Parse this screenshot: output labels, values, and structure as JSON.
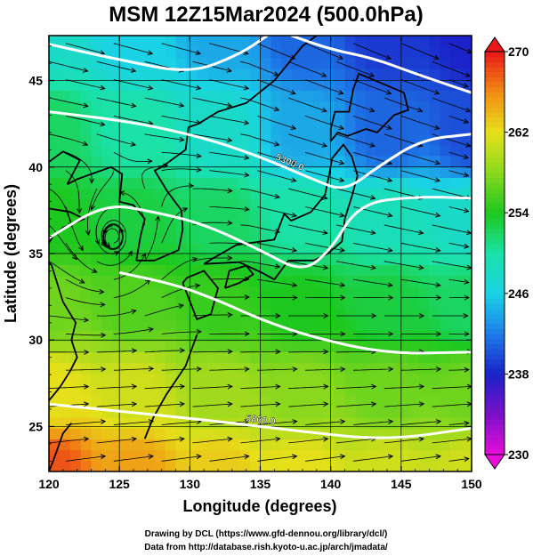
{
  "chart_data": {
    "type": "heatmap",
    "title": "MSM 12Z15Mar2024 (500.0hPa)",
    "xlabel": "Longitude (degrees)",
    "ylabel": "Latitude  (degrees)",
    "xlim": [
      120,
      150
    ],
    "ylim": [
      22.4,
      47.6
    ],
    "xticks": [
      120,
      125,
      130,
      135,
      140,
      145,
      150
    ],
    "yticks": [
      25,
      30,
      35,
      40,
      45
    ],
    "grid": true,
    "colorbar": {
      "min": 230,
      "max": 270,
      "ticks": [
        230,
        238,
        246,
        254,
        262,
        270
      ],
      "placement": "right",
      "stops": [
        {
          "value": 230,
          "color": "#e80fd8"
        },
        {
          "value": 234,
          "color": "#7c10c8"
        },
        {
          "value": 238,
          "color": "#1a22c8"
        },
        {
          "value": 242,
          "color": "#1e7ce8"
        },
        {
          "value": 246,
          "color": "#1ad2e6"
        },
        {
          "value": 250,
          "color": "#1ae2a8"
        },
        {
          "value": 254,
          "color": "#1cc81e"
        },
        {
          "value": 258,
          "color": "#8ad81e"
        },
        {
          "value": 262,
          "color": "#e6e01a"
        },
        {
          "value": 266,
          "color": "#f28c14"
        },
        {
          "value": 270,
          "color": "#e81818"
        }
      ]
    },
    "temperature_field": {
      "note_units": "K",
      "control_points": [
        {
          "lon": 120,
          "lat": 47.6,
          "value": 248
        },
        {
          "lon": 126,
          "lat": 47.6,
          "value": 246
        },
        {
          "lon": 132,
          "lat": 47.6,
          "value": 244
        },
        {
          "lon": 138,
          "lat": 47.6,
          "value": 241
        },
        {
          "lon": 144,
          "lat": 47.6,
          "value": 239
        },
        {
          "lon": 150,
          "lat": 47.6,
          "value": 238
        },
        {
          "lon": 120,
          "lat": 42,
          "value": 252
        },
        {
          "lon": 126,
          "lat": 42,
          "value": 250
        },
        {
          "lon": 132,
          "lat": 42,
          "value": 248
        },
        {
          "lon": 138,
          "lat": 42,
          "value": 244
        },
        {
          "lon": 144,
          "lat": 42,
          "value": 241
        },
        {
          "lon": 150,
          "lat": 42,
          "value": 240
        },
        {
          "lon": 120,
          "lat": 37,
          "value": 254
        },
        {
          "lon": 126,
          "lat": 37,
          "value": 253
        },
        {
          "lon": 132,
          "lat": 37,
          "value": 252
        },
        {
          "lon": 138,
          "lat": 37,
          "value": 250
        },
        {
          "lon": 144,
          "lat": 37,
          "value": 249
        },
        {
          "lon": 150,
          "lat": 37,
          "value": 248
        },
        {
          "lon": 120,
          "lat": 32,
          "value": 257
        },
        {
          "lon": 126,
          "lat": 32,
          "value": 256
        },
        {
          "lon": 132,
          "lat": 32,
          "value": 255
        },
        {
          "lon": 138,
          "lat": 32,
          "value": 254
        },
        {
          "lon": 144,
          "lat": 32,
          "value": 253
        },
        {
          "lon": 150,
          "lat": 32,
          "value": 252
        },
        {
          "lon": 120,
          "lat": 27,
          "value": 262
        },
        {
          "lon": 126,
          "lat": 27,
          "value": 261
        },
        {
          "lon": 132,
          "lat": 27,
          "value": 259
        },
        {
          "lon": 138,
          "lat": 27,
          "value": 258
        },
        {
          "lon": 144,
          "lat": 27,
          "value": 257
        },
        {
          "lon": 150,
          "lat": 27,
          "value": 257
        },
        {
          "lon": 120,
          "lat": 22.4,
          "value": 268
        },
        {
          "lon": 126,
          "lat": 22.4,
          "value": 265
        },
        {
          "lon": 132,
          "lat": 22.4,
          "value": 263
        },
        {
          "lon": 138,
          "lat": 22.4,
          "value": 262
        },
        {
          "lon": 144,
          "lat": 22.4,
          "value": 261
        },
        {
          "lon": 150,
          "lat": 22.4,
          "value": 261
        }
      ]
    },
    "contours": [
      {
        "label": "",
        "points": [
          [
            120,
            47.1
          ],
          [
            125,
            46.2
          ],
          [
            130,
            45.4
          ],
          [
            133.5,
            46.5
          ],
          [
            135.5,
            47.6
          ]
        ]
      },
      {
        "label": "",
        "points": [
          [
            137.2,
            47.6
          ],
          [
            140,
            46.8
          ],
          [
            143,
            46.3
          ],
          [
            146,
            45.4
          ],
          [
            150,
            44.3
          ]
        ]
      },
      {
        "label": "5300.0",
        "points": [
          [
            120,
            43.2
          ],
          [
            126,
            42.6
          ],
          [
            131,
            41.7
          ],
          [
            135,
            40.6
          ],
          [
            139,
            39.2
          ],
          [
            141,
            38.6
          ],
          [
            143.5,
            40.1
          ],
          [
            146.5,
            41.6
          ],
          [
            150,
            41.9
          ]
        ]
      },
      {
        "label": "",
        "points": [
          [
            120,
            35.9
          ],
          [
            124,
            37.9
          ],
          [
            127.5,
            37.4
          ],
          [
            131,
            36.7
          ],
          [
            135,
            35.2
          ],
          [
            138,
            33.9
          ],
          [
            140,
            35.2
          ],
          [
            142,
            37.9
          ],
          [
            146,
            38.3
          ],
          [
            150,
            38.2
          ]
        ]
      },
      {
        "label": "",
        "points": [
          [
            125,
            33.9
          ],
          [
            129,
            33.2
          ],
          [
            132,
            32.3
          ],
          [
            135,
            31.2
          ],
          [
            138.5,
            30.2
          ],
          [
            144,
            29.2
          ],
          [
            150,
            29.3
          ]
        ]
      },
      {
        "label": "5860.0",
        "points": [
          [
            120,
            26.3
          ],
          [
            126,
            25.8
          ],
          [
            132,
            25.3
          ],
          [
            138,
            24.7
          ],
          [
            144,
            24.2
          ],
          [
            150,
            24.9
          ]
        ]
      }
    ],
    "contour_label_text": [
      "5300.0",
      "5860.0"
    ],
    "vortex_center": {
      "lon": 124.5,
      "lat": 35.8
    },
    "credits": [
      "Drawing by DCL (https://www.gfd-dennou.org/library/dcl/)",
      "Data from http://database.rish.kyoto-u.ac.jp/arch/jmadata/"
    ]
  }
}
